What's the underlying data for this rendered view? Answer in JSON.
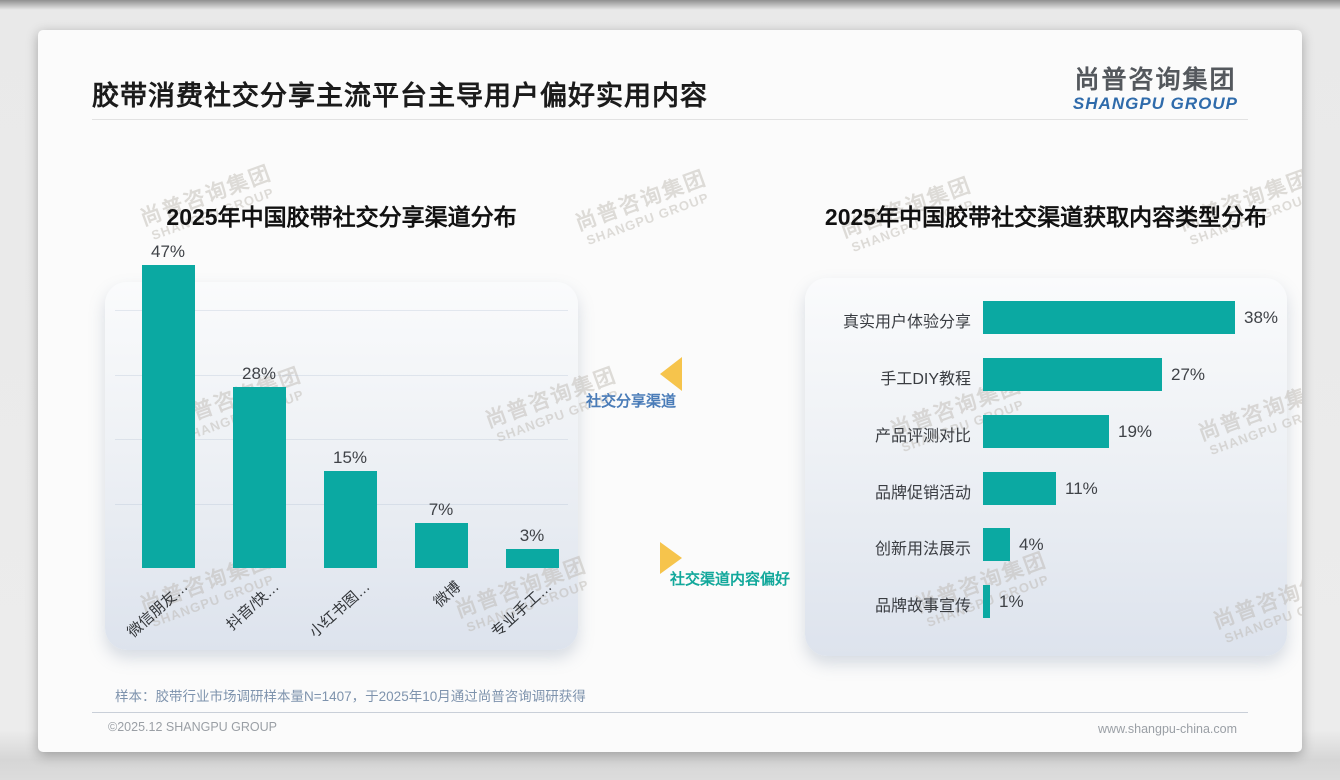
{
  "page": {
    "title": "胶带消费社交分享主流平台主导用户偏好实用内容",
    "logo": {
      "cn": "尚普咨询集团",
      "en": "SHANGPU GROUP"
    },
    "watermark": {
      "cn": "尚普咨询集团",
      "en": "SHANGPU GROUP"
    },
    "note": "样本：胶带行业市场调研样本量N=1407，于2025年10月通过尚普咨询调研获得",
    "footer": {
      "left": "©2025.12 SHANGPU GROUP",
      "right": "www.shangpu-china.com"
    }
  },
  "annotations": {
    "share_channel": {
      "text": "社交分享渠道",
      "color": "#4a7cb8",
      "arrow": "left"
    },
    "content_preference": {
      "text": "社交渠道内容偏好",
      "color": "#12a89b",
      "arrow": "right"
    },
    "arrow_color": "#f6c44c"
  },
  "chart_data": [
    {
      "type": "bar",
      "orientation": "vertical",
      "title": "2025年中国胶带社交分享渠道分布",
      "categories": [
        "微信朋友…",
        "抖音/快…",
        "小红书图…",
        "微博",
        "专业手工…"
      ],
      "values": [
        47,
        28,
        15,
        7,
        3
      ],
      "data_labels": [
        "47%",
        "28%",
        "15%",
        "7%",
        "3%"
      ],
      "unit": "%",
      "ylim": [
        0,
        50
      ],
      "bar_color": "#0ba9a2",
      "grid": true,
      "legend": "none"
    },
    {
      "type": "bar",
      "orientation": "horizontal",
      "title": "2025年中国胶带社交渠道获取内容类型分布",
      "categories": [
        "真实用户体验分享",
        "手工DIY教程",
        "产品评测对比",
        "品牌促销活动",
        "创新用法展示",
        "品牌故事宣传"
      ],
      "values": [
        38,
        27,
        19,
        11,
        4,
        1
      ],
      "data_labels": [
        "38%",
        "27%",
        "19%",
        "11%",
        "4%",
        "1%"
      ],
      "unit": "%",
      "xlim": [
        0,
        40
      ],
      "bar_color": "#0ba9a2",
      "grid": false,
      "legend": "none"
    }
  ]
}
